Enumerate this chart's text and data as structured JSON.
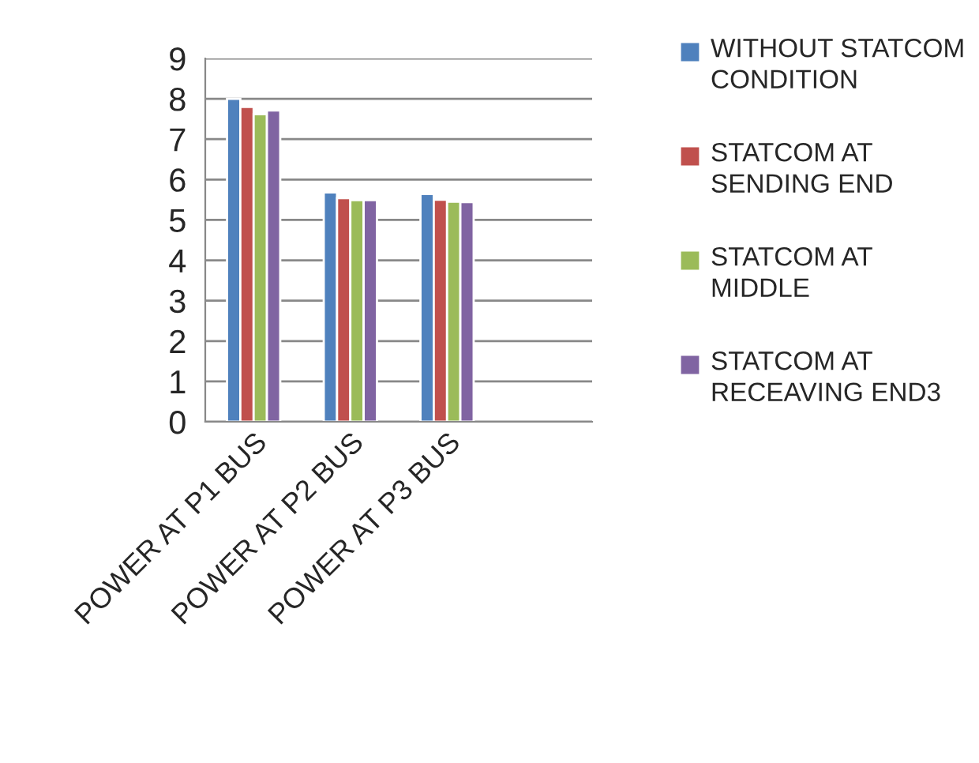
{
  "chart_data": {
    "type": "bar",
    "categories": [
      "POWER AT P1 BUS",
      "POWER AT P2 BUS",
      "POWER AT P3 BUS",
      null
    ],
    "series": [
      {
        "name": "WITHOUT STATCOM CONDITION",
        "color": "#4f81bd",
        "values": [
          8.0,
          5.68,
          5.64,
          null
        ]
      },
      {
        "name": "STATCOM AT SENDING END",
        "color": "#c0504d",
        "values": [
          7.8,
          5.54,
          5.5,
          null
        ]
      },
      {
        "name": "STATCOM AT MIDDLE",
        "color": "#9bbb59",
        "values": [
          7.62,
          5.49,
          5.45,
          null
        ]
      },
      {
        "name": "STATCOM AT RECEAVING END3",
        "color": "#8064a2",
        "values": [
          7.71,
          5.49,
          5.44,
          null
        ]
      }
    ],
    "ylim": [
      0,
      9
    ],
    "yticks": [
      0,
      1,
      2,
      3,
      4,
      5,
      6,
      7,
      8,
      9
    ],
    "grid": "y",
    "legend": "right"
  }
}
